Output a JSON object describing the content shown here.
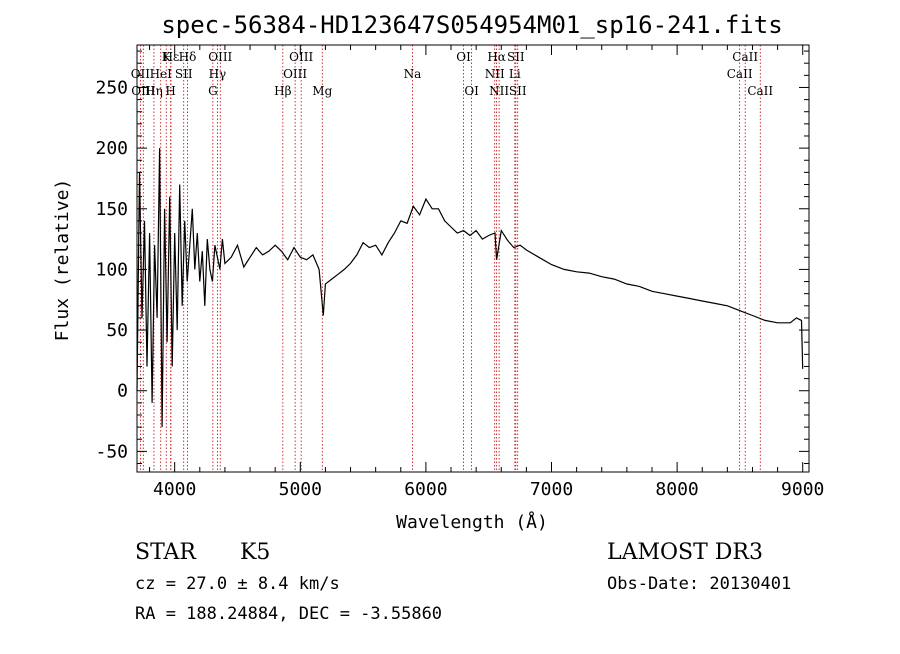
{
  "chart_data": {
    "type": "line",
    "title": "spec-56384-HD123647S054954M01_sp16-241.fits",
    "xlabel": "Wavelength (Å)",
    "ylabel": "Flux (relative)",
    "xlim": [
      3700,
      9050
    ],
    "ylim": [
      -67,
      285
    ],
    "x_ticks": [
      4000,
      5000,
      6000,
      7000,
      8000,
      9000
    ],
    "y_ticks": [
      -50,
      0,
      50,
      100,
      150,
      200,
      250
    ],
    "grid": false,
    "colors": {
      "spectrum": "#000000",
      "line_markers": "#c00000"
    },
    "series": [
      {
        "x": [
          3700,
          3720,
          3740,
          3760,
          3780,
          3800,
          3820,
          3840,
          3860,
          3880,
          3900,
          3920,
          3940,
          3960,
          3980,
          4000,
          4020,
          4040,
          4060,
          4080,
          4100,
          4120,
          4140,
          4160,
          4180,
          4200,
          4220,
          4240,
          4260,
          4280,
          4300,
          4320,
          4340,
          4360,
          4380,
          4400,
          4450,
          4500,
          4550,
          4600,
          4650,
          4700,
          4750,
          4800,
          4850,
          4900,
          4950,
          5000,
          5050,
          5100,
          5150,
          5183,
          5200,
          5250,
          5300,
          5350,
          5400,
          5450,
          5500,
          5550,
          5600,
          5650,
          5700,
          5750,
          5800,
          5850,
          5900,
          5950,
          6000,
          6050,
          6100,
          6150,
          6200,
          6250,
          6300,
          6350,
          6400,
          6450,
          6500,
          6550,
          6563,
          6600,
          6650,
          6700,
          6750,
          6800,
          6900,
          7000,
          7100,
          7200,
          7300,
          7400,
          7500,
          7600,
          7700,
          7800,
          7900,
          8000,
          8100,
          8200,
          8300,
          8400,
          8500,
          8600,
          8700,
          8800,
          8900,
          8950,
          8990,
          9000
        ],
        "y": [
          0,
          180,
          60,
          140,
          20,
          130,
          -10,
          120,
          60,
          200,
          -30,
          150,
          40,
          160,
          20,
          130,
          50,
          170,
          70,
          140,
          90,
          120,
          150,
          100,
          130,
          90,
          115,
          70,
          125,
          100,
          90,
          120,
          110,
          100,
          125,
          105,
          110,
          120,
          102,
          110,
          118,
          112,
          115,
          120,
          115,
          108,
          118,
          110,
          108,
          112,
          100,
          62,
          88,
          92,
          96,
          100,
          105,
          112,
          122,
          118,
          120,
          112,
          122,
          130,
          140,
          138,
          152,
          145,
          158,
          150,
          150,
          140,
          135,
          130,
          132,
          128,
          132,
          125,
          128,
          130,
          108,
          132,
          124,
          118,
          120,
          116,
          110,
          104,
          100,
          98,
          97,
          94,
          92,
          88,
          86,
          82,
          80,
          78,
          76,
          74,
          72,
          70,
          66,
          62,
          58,
          56,
          56,
          60,
          58,
          18
        ]
      }
    ],
    "lines": [
      {
        "name": "Hε",
        "wave": 3970,
        "row": 1
      },
      {
        "name": "K",
        "wave": 3933,
        "row": 1
      },
      {
        "name": "Hδ",
        "wave": 4102,
        "row": 1
      },
      {
        "name": "OIII",
        "wave": 4363,
        "row": 1
      },
      {
        "name": "OIII",
        "wave": 5007,
        "row": 1
      },
      {
        "name": "OI",
        "wave": 6300,
        "row": 1
      },
      {
        "name": "Hα",
        "wave": 6563,
        "row": 1
      },
      {
        "name": "SII",
        "wave": 6716,
        "row": 1
      },
      {
        "name": "CaII",
        "wave": 8542,
        "row": 1
      },
      {
        "name": "OII",
        "wave": 3727,
        "row": 2
      },
      {
        "name": "HeI",
        "wave": 3889,
        "row": 2
      },
      {
        "name": "SII",
        "wave": 4072,
        "row": 2
      },
      {
        "name": "Hγ",
        "wave": 4340,
        "row": 2
      },
      {
        "name": "OIII",
        "wave": 4959,
        "row": 2
      },
      {
        "name": "Na",
        "wave": 5893,
        "row": 2
      },
      {
        "name": "NII",
        "wave": 6548,
        "row": 2
      },
      {
        "name": "Li",
        "wave": 6708,
        "row": 2
      },
      {
        "name": "CaII",
        "wave": 8498,
        "row": 2
      },
      {
        "name": "OIII",
        "wave": 3750,
        "row": 3
      },
      {
        "name": "Hη",
        "wave": 3835,
        "row": 3
      },
      {
        "name": "H",
        "wave": 3968,
        "row": 3
      },
      {
        "name": "G",
        "wave": 4304,
        "row": 3
      },
      {
        "name": "Hβ",
        "wave": 4861,
        "row": 3
      },
      {
        "name": "Mg",
        "wave": 5175,
        "row": 3
      },
      {
        "name": "OI",
        "wave": 6364,
        "row": 3
      },
      {
        "name": "NII",
        "wave": 6583,
        "row": 3
      },
      {
        "name": "SII",
        "wave": 6731,
        "row": 3
      },
      {
        "name": "CaII",
        "wave": 8662,
        "row": 3
      }
    ]
  },
  "info": {
    "object_class": "STAR",
    "subclass": "K5",
    "survey": "LAMOST DR3",
    "redshift_text": "cz = 27.0 ± 8.4 km/s",
    "obs_date_text": "Obs-Date: 20130401",
    "coords_text": "RA = 188.24884, DEC =  -3.55860"
  }
}
